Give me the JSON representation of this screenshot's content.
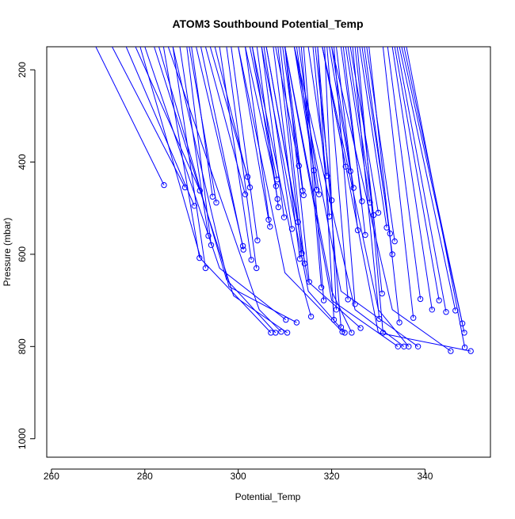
{
  "chart_data": {
    "type": "line",
    "title": "ATOM3 Southbound Potential_Temp",
    "xlabel": "Potential_Temp",
    "ylabel": "Pressure (mbar)",
    "xlim": [
      259,
      354
    ],
    "ylim": [
      1040,
      150
    ],
    "y_axis_reversed": true,
    "xticks": [
      260,
      280,
      300,
      320,
      340
    ],
    "yticks": [
      200,
      400,
      600,
      800,
      1000
    ],
    "grid": false,
    "markers": "open-circle",
    "colors": {
      "series": "#0000ff",
      "axis": "#000000",
      "background": "#ffffff"
    },
    "series": [
      {
        "values": [
          [
            284.1,
            450
          ],
          [
            269.5,
            150
          ]
        ]
      },
      {
        "values": [
          [
            288.6,
            455
          ],
          [
            273.0,
            150
          ]
        ]
      },
      {
        "values": [
          [
            290.6,
            495
          ],
          [
            276.0,
            150
          ]
        ]
      },
      {
        "values": [
          [
            291.8,
            462
          ],
          [
            278.0,
            150
          ]
        ]
      },
      {
        "values": [
          [
            291.7,
            608
          ],
          [
            284.0,
            150
          ]
        ]
      },
      {
        "values": [
          [
            293.0,
            630
          ],
          [
            286.0,
            150
          ]
        ]
      },
      {
        "values": [
          [
            293.6,
            560
          ],
          [
            287.5,
            150
          ]
        ]
      },
      {
        "values": [
          [
            294.2,
            580
          ],
          [
            289.0,
            150
          ]
        ]
      },
      {
        "values": [
          [
            294.5,
            475
          ],
          [
            290.0,
            150
          ]
        ]
      },
      {
        "values": [
          [
            295.3,
            488
          ],
          [
            289.5,
            150
          ]
        ]
      },
      {
        "values": [
          [
            301.0,
            582
          ],
          [
            291.0,
            150
          ]
        ]
      },
      {
        "values": [
          [
            301.1,
            590
          ],
          [
            292.0,
            150
          ]
        ]
      },
      {
        "values": [
          [
            301.5,
            470
          ],
          [
            293.0,
            150
          ]
        ]
      },
      {
        "values": [
          [
            302.0,
            432
          ],
          [
            294.0,
            150
          ]
        ]
      },
      {
        "values": [
          [
            302.5,
            455
          ],
          [
            295.0,
            150
          ]
        ]
      },
      {
        "values": [
          [
            302.8,
            612
          ],
          [
            296.0,
            150
          ]
        ]
      },
      {
        "values": [
          [
            303.9,
            630
          ],
          [
            297.5,
            150
          ]
        ]
      },
      {
        "values": [
          [
            304.1,
            570
          ],
          [
            298.5,
            150
          ]
        ]
      },
      {
        "values": [
          [
            306.5,
            525
          ],
          [
            300.0,
            150
          ]
        ]
      },
      {
        "values": [
          [
            306.8,
            540
          ],
          [
            301.5,
            150
          ]
        ]
      },
      {
        "values": [
          [
            307.0,
            770
          ],
          [
            292.0,
            610
          ],
          [
            279.0,
            150
          ]
        ]
      },
      {
        "values": [
          [
            308.0,
            770
          ],
          [
            297.5,
            655
          ],
          [
            283.0,
            150
          ]
        ]
      },
      {
        "values": [
          [
            308.1,
            452
          ],
          [
            301.5,
            150
          ]
        ]
      },
      {
        "values": [
          [
            308.3,
            438
          ],
          [
            302.5,
            150
          ]
        ]
      },
      {
        "values": [
          [
            308.4,
            480
          ],
          [
            303.0,
            150
          ]
        ]
      },
      {
        "values": [
          [
            308.6,
            498
          ],
          [
            304.0,
            150
          ]
        ]
      },
      {
        "values": [
          [
            309.2,
            768
          ],
          [
            304.5,
            720
          ],
          [
            285.0,
            150
          ]
        ]
      },
      {
        "values": [
          [
            309.8,
            520
          ],
          [
            305.0,
            150
          ]
        ]
      },
      {
        "values": [
          [
            310.2,
            742
          ],
          [
            296.0,
            630
          ],
          [
            280.0,
            150
          ]
        ]
      },
      {
        "values": [
          [
            310.5,
            770
          ],
          [
            299.0,
            690
          ],
          [
            282.0,
            150
          ]
        ]
      },
      {
        "values": [
          [
            311.5,
            545
          ],
          [
            305.5,
            150
          ]
        ]
      },
      {
        "values": [
          [
            312.5,
            748
          ],
          [
            298.0,
            670
          ],
          [
            286.0,
            150
          ]
        ]
      },
      {
        "values": [
          [
            312.8,
            530
          ],
          [
            306.0,
            150
          ]
        ]
      },
      {
        "values": [
          [
            313.0,
            408
          ],
          [
            308.0,
            150
          ]
        ]
      },
      {
        "values": [
          [
            313.2,
            610
          ],
          [
            307.5,
            150
          ]
        ]
      },
      {
        "values": [
          [
            313.6,
            598
          ],
          [
            308.5,
            150
          ]
        ]
      },
      {
        "values": [
          [
            313.8,
            462
          ],
          [
            309.5,
            150
          ]
        ]
      },
      {
        "values": [
          [
            314.0,
            472
          ],
          [
            310.0,
            150
          ]
        ]
      },
      {
        "values": [
          [
            314.2,
            620
          ],
          [
            309.0,
            150
          ]
        ]
      },
      {
        "values": [
          [
            315.2,
            660
          ],
          [
            310.0,
            150
          ]
        ]
      },
      {
        "values": [
          [
            315.6,
            735
          ],
          [
            313.0,
            640
          ],
          [
            303.0,
            150
          ]
        ]
      },
      {
        "values": [
          [
            316.2,
            418
          ],
          [
            312.0,
            150
          ]
        ]
      },
      {
        "values": [
          [
            316.8,
            460
          ],
          [
            312.5,
            150
          ]
        ]
      },
      {
        "values": [
          [
            317.3,
            470
          ],
          [
            313.0,
            150
          ]
        ]
      },
      {
        "values": [
          [
            317.8,
            672
          ],
          [
            313.5,
            150
          ]
        ]
      },
      {
        "values": [
          [
            318.3,
            700
          ],
          [
            314.0,
            150
          ]
        ]
      },
      {
        "values": [
          [
            319.0,
            430
          ],
          [
            315.0,
            150
          ]
        ]
      },
      {
        "values": [
          [
            319.5,
            518
          ],
          [
            316.0,
            150
          ]
        ]
      },
      {
        "values": [
          [
            320.0,
            483
          ],
          [
            316.5,
            150
          ]
        ]
      },
      {
        "values": [
          [
            320.5,
            742
          ],
          [
            317.0,
            150
          ]
        ]
      },
      {
        "values": [
          [
            321.0,
            720
          ],
          [
            318.5,
            150
          ]
        ]
      },
      {
        "values": [
          [
            322.0,
            758
          ],
          [
            317.0,
            150
          ]
        ]
      },
      {
        "values": [
          [
            322.3,
            768
          ],
          [
            310.0,
            640
          ],
          [
            300.0,
            150
          ]
        ]
      },
      {
        "values": [
          [
            322.8,
            770
          ],
          [
            315.0,
            680
          ],
          [
            305.0,
            150
          ]
        ]
      },
      {
        "values": [
          [
            323.0,
            410
          ],
          [
            318.0,
            150
          ]
        ]
      },
      {
        "values": [
          [
            323.5,
            698
          ],
          [
            319.0,
            150
          ]
        ]
      },
      {
        "values": [
          [
            324.0,
            420
          ],
          [
            319.5,
            150
          ]
        ]
      },
      {
        "values": [
          [
            324.3,
            770
          ],
          [
            320.0,
            680
          ],
          [
            310.0,
            150
          ]
        ]
      },
      {
        "values": [
          [
            324.7,
            456
          ],
          [
            320.0,
            150
          ]
        ]
      },
      {
        "values": [
          [
            325.0,
            708
          ],
          [
            320.5,
            150
          ]
        ]
      },
      {
        "values": [
          [
            325.6,
            548
          ],
          [
            321.0,
            150
          ]
        ]
      },
      {
        "values": [
          [
            326.2,
            760
          ],
          [
            315.0,
            660
          ],
          [
            306.0,
            150
          ]
        ]
      },
      {
        "values": [
          [
            326.5,
            485
          ],
          [
            322.0,
            150
          ]
        ]
      },
      {
        "values": [
          [
            327.2,
            558
          ],
          [
            322.5,
            150
          ]
        ]
      },
      {
        "values": [
          [
            328.2,
            488
          ],
          [
            323.0,
            150
          ]
        ]
      },
      {
        "values": [
          [
            329.0,
            515
          ],
          [
            323.5,
            150
          ]
        ]
      },
      {
        "values": [
          [
            330.0,
            510
          ],
          [
            324.0,
            150
          ]
        ]
      },
      {
        "values": [
          [
            330.2,
            740
          ],
          [
            324.5,
            150
          ]
        ]
      },
      {
        "values": [
          [
            330.8,
            685
          ],
          [
            325.0,
            150
          ]
        ]
      },
      {
        "values": [
          [
            331.0,
            770
          ],
          [
            325.5,
            150
          ]
        ]
      },
      {
        "values": [
          [
            331.8,
            542
          ],
          [
            326.0,
            150
          ]
        ]
      },
      {
        "values": [
          [
            332.5,
            555
          ],
          [
            326.5,
            150
          ]
        ]
      },
      {
        "values": [
          [
            333.0,
            600
          ],
          [
            327.0,
            150
          ]
        ]
      },
      {
        "values": [
          [
            333.5,
            572
          ],
          [
            327.5,
            150
          ]
        ]
      },
      {
        "values": [
          [
            334.2,
            800
          ],
          [
            320.0,
            700
          ],
          [
            310.0,
            150
          ]
        ]
      },
      {
        "values": [
          [
            334.5,
            748
          ],
          [
            328.0,
            150
          ]
        ]
      },
      {
        "values": [
          [
            335.5,
            800
          ],
          [
            325.0,
            720
          ],
          [
            312.0,
            150
          ]
        ]
      },
      {
        "values": [
          [
            336.5,
            800
          ],
          [
            330.0,
            720
          ],
          [
            318.0,
            150
          ]
        ]
      },
      {
        "values": [
          [
            337.5,
            738
          ],
          [
            331.0,
            150
          ]
        ]
      },
      {
        "values": [
          [
            338.5,
            800
          ],
          [
            322.0,
            680
          ],
          [
            312.0,
            150
          ]
        ]
      },
      {
        "values": [
          [
            339.0,
            697
          ],
          [
            332.0,
            150
          ]
        ]
      },
      {
        "values": [
          [
            341.5,
            720
          ],
          [
            333.0,
            150
          ]
        ]
      },
      {
        "values": [
          [
            343.0,
            700
          ],
          [
            333.5,
            150
          ]
        ]
      },
      {
        "values": [
          [
            344.5,
            725
          ],
          [
            334.0,
            150
          ]
        ]
      },
      {
        "values": [
          [
            345.5,
            810
          ],
          [
            333.0,
            720
          ],
          [
            320.0,
            150
          ]
        ]
      },
      {
        "values": [
          [
            346.5,
            722
          ],
          [
            334.5,
            150
          ]
        ]
      },
      {
        "values": [
          [
            348.0,
            750
          ],
          [
            335.0,
            150
          ]
        ]
      },
      {
        "values": [
          [
            348.4,
            770
          ],
          [
            335.5,
            150
          ]
        ]
      },
      {
        "values": [
          [
            348.5,
            802
          ],
          [
            336.0,
            150
          ]
        ]
      },
      {
        "values": [
          [
            349.8,
            810
          ],
          [
            330.0,
            770
          ],
          [
            318.0,
            150
          ]
        ]
      }
    ]
  }
}
